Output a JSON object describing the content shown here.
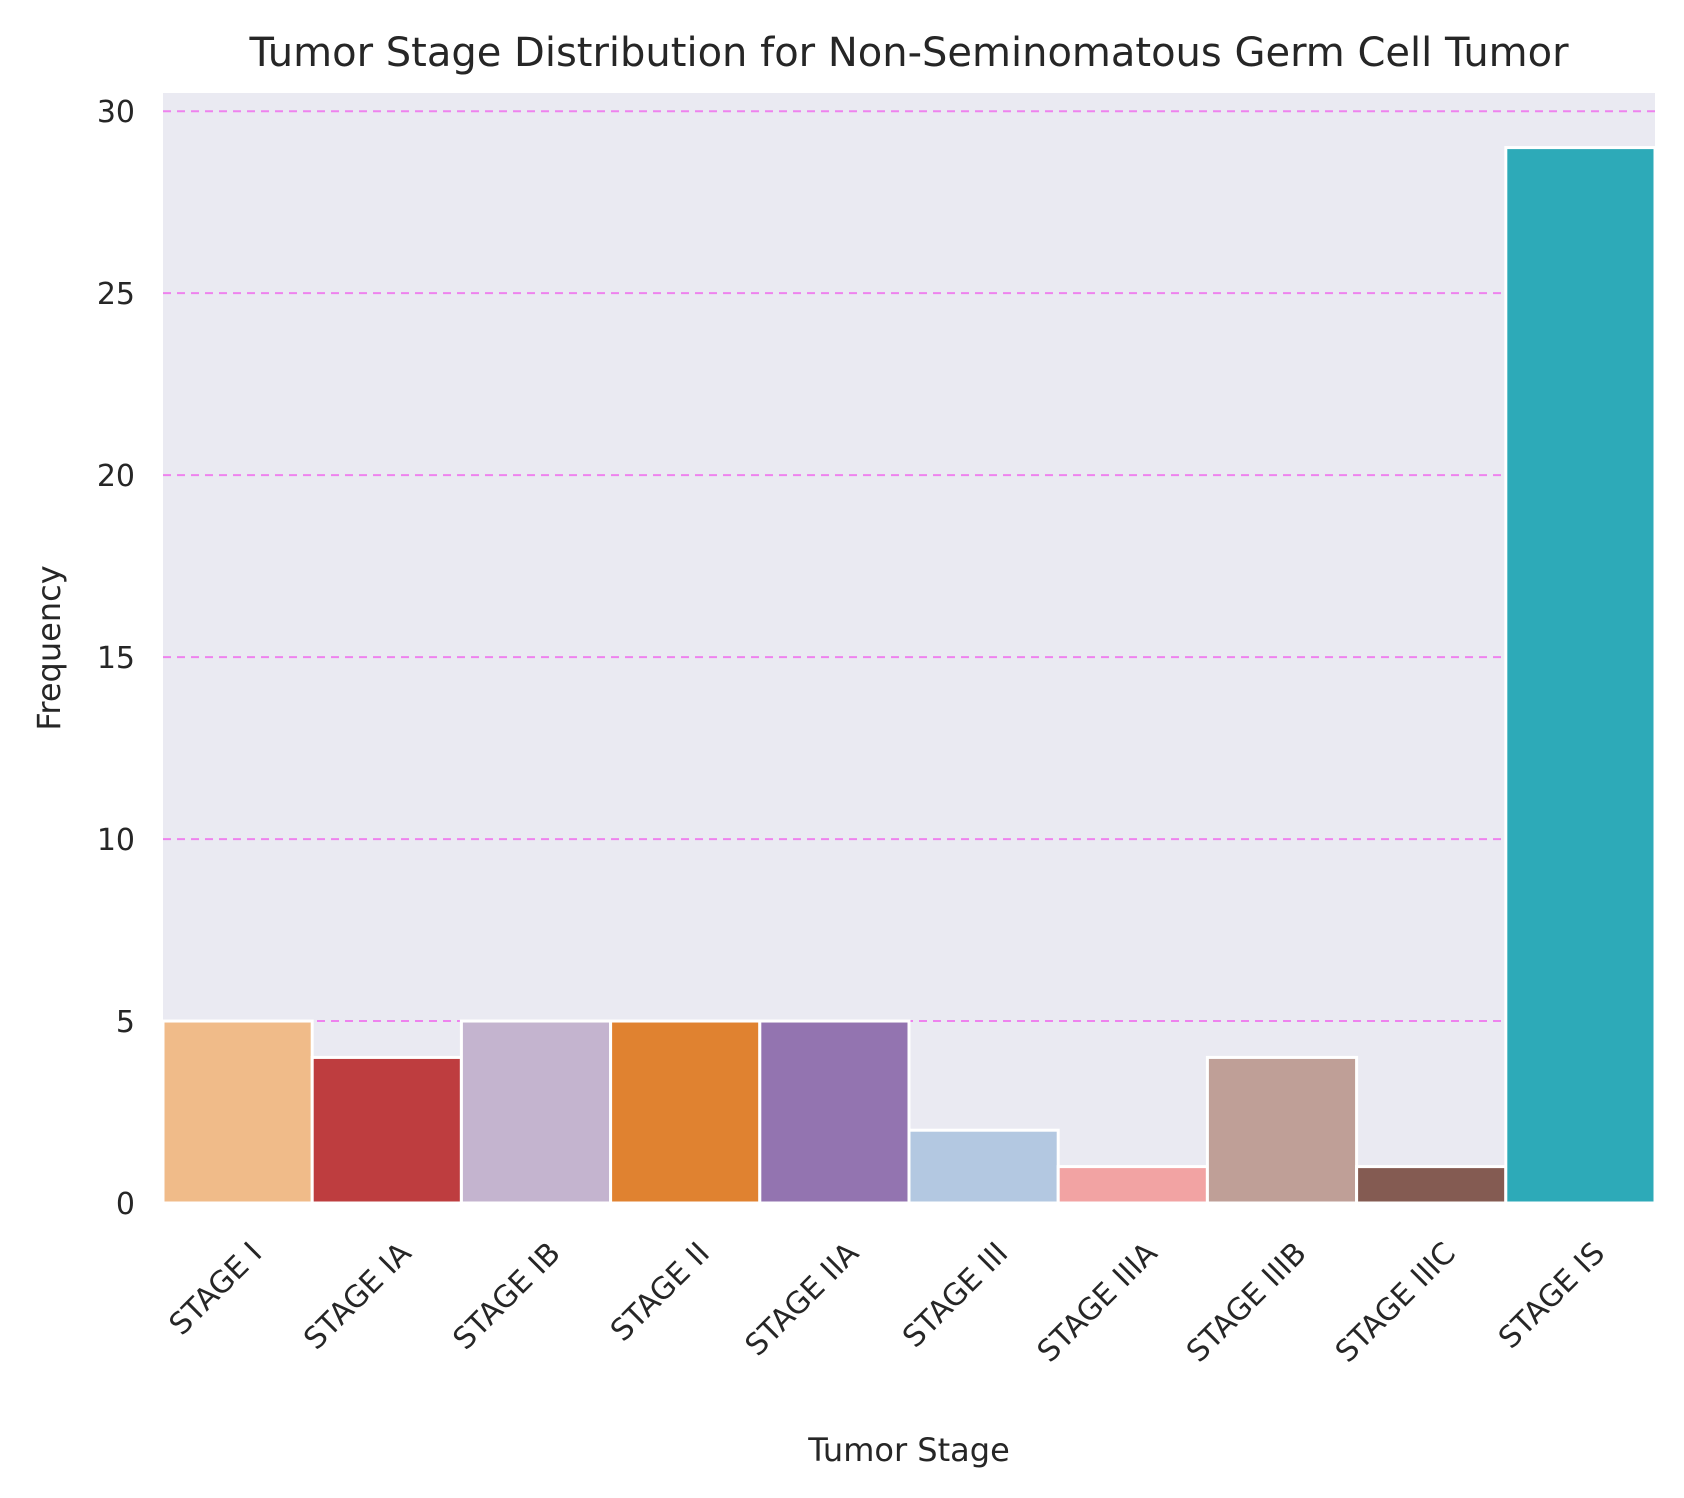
{
  "chart_data": {
    "type": "bar",
    "title": "Tumor Stage Distribution for Non-Seminomatous Germ Cell Tumor",
    "xlabel": "Tumor Stage",
    "ylabel": "Frequency",
    "categories": [
      "STAGE I",
      "STAGE IA",
      "STAGE IB",
      "STAGE II",
      "STAGE IIA",
      "STAGE III",
      "STAGE IIIA",
      "STAGE IIIB",
      "STAGE IIIC",
      "STAGE IS"
    ],
    "values": [
      5,
      4,
      5,
      5,
      5,
      2,
      1,
      4,
      1,
      29
    ],
    "colors": [
      "#f0bb89",
      "#be3d3f",
      "#c4b4cf",
      "#e08230",
      "#9374b0",
      "#b3c8e1",
      "#f2a3a3",
      "#bf9f97",
      "#845b52",
      "#2daab8"
    ],
    "ylim": [
      0,
      30.5
    ],
    "yticks": [
      0,
      5,
      10,
      15,
      20,
      25,
      30
    ],
    "grid": "horizontal-dashed",
    "grid_color": "#ee82ee",
    "background_color": "#eaeaf2",
    "legend": "none"
  }
}
